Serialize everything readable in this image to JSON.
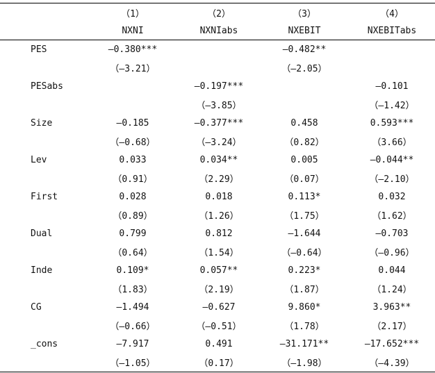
{
  "header": {
    "numbers": [
      "（1）",
      "（2）",
      "（3）",
      "（4）"
    ],
    "names": [
      "NXNI",
      "NXNIabs",
      "NXEBIT",
      "NXEBITabs"
    ]
  },
  "rows": [
    {
      "var": "PES",
      "coef": [
        "–0.380***",
        "",
        "–0.482**",
        ""
      ],
      "t": [
        "（–3.21）",
        "",
        "（–2.05）",
        ""
      ]
    },
    {
      "var": "PESabs",
      "coef": [
        "",
        "–0.197***",
        "",
        "–0.101"
      ],
      "t": [
        "",
        "（–3.85）",
        "",
        "（–1.42）"
      ]
    },
    {
      "var": "Size",
      "coef": [
        "–0.185",
        "–0.377***",
        "0.458",
        "0.593***"
      ],
      "t": [
        "（–0.68）",
        "（–3.24）",
        "（0.82）",
        "（3.66）"
      ]
    },
    {
      "var": "Lev",
      "coef": [
        "0.033",
        "0.034**",
        "0.005",
        "–0.044**"
      ],
      "t": [
        "（0.91）",
        "（2.29）",
        "（0.07）",
        "（–2.10）"
      ]
    },
    {
      "var": "First",
      "coef": [
        "0.028",
        "0.018",
        "0.113*",
        "0.032"
      ],
      "t": [
        "（0.89）",
        "（1.26）",
        "（1.75）",
        "（1.62）"
      ]
    },
    {
      "var": "Dual",
      "coef": [
        "0.799",
        "0.812",
        "–1.644",
        "–0.703"
      ],
      "t": [
        "（0.64）",
        "（1.54）",
        "（–0.64）",
        "（–0.96）"
      ]
    },
    {
      "var": "Inde",
      "coef": [
        "0.109*",
        "0.057**",
        "0.223*",
        "0.044"
      ],
      "t": [
        "（1.83）",
        "（2.19）",
        "（1.87）",
        "（1.24）"
      ]
    },
    {
      "var": "CG",
      "coef": [
        "–1.494",
        "–0.627",
        "9.860*",
        "3.963**"
      ],
      "t": [
        "（–0.66）",
        "（–0.51）",
        "（1.78）",
        "（2.17）"
      ]
    },
    {
      "var": "_cons",
      "coef": [
        "–7.917",
        "0.491",
        "–31.171**",
        "–17.652***"
      ],
      "t": [
        "（–1.05）",
        "（0.17）",
        "（–1.98）",
        "（–4.39）"
      ]
    }
  ]
}
